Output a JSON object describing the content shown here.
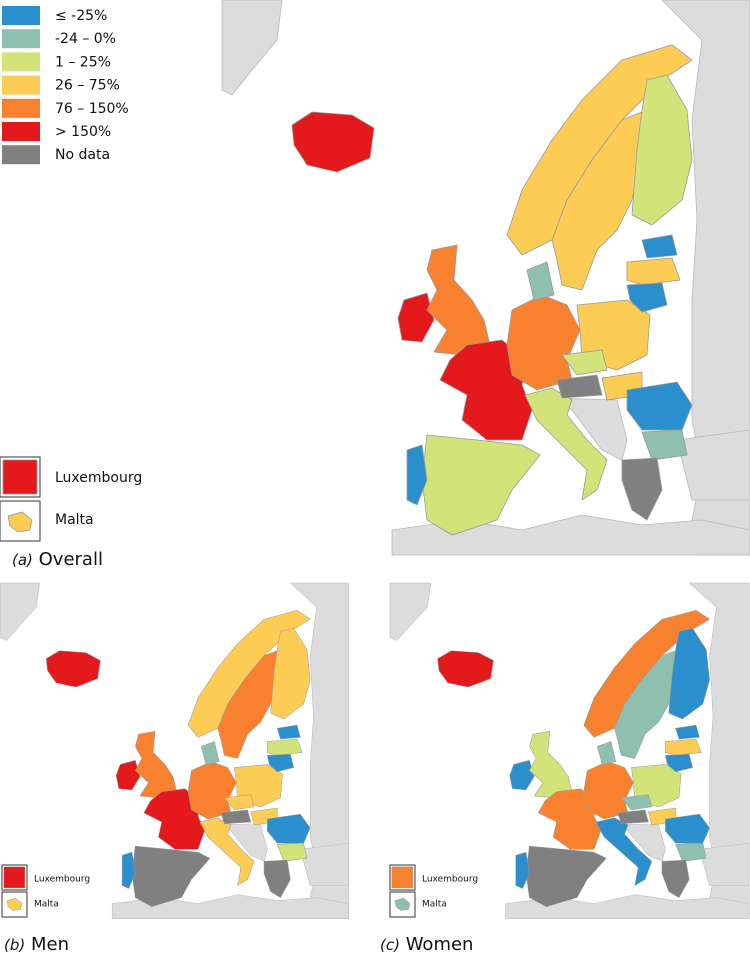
{
  "legend": [
    {
      "label": "≤ -25%",
      "color": "#2a8fcc"
    },
    {
      "label": "-24 – 0%",
      "color": "#8fbfae"
    },
    {
      "label": "1 – 25%",
      "color": "#d2e37a"
    },
    {
      "label": "26 – 75%",
      "color": "#fdcc55"
    },
    {
      "label": "76 – 150%",
      "color": "#f7812e"
    },
    {
      "label": "> 150%",
      "color": "#e3191c"
    },
    {
      "label": "No data",
      "color": "#808080"
    }
  ],
  "panels": [
    {
      "letter": "(a)",
      "caption": "Overall",
      "insets": [
        "Luxembourg",
        "Malta"
      ]
    },
    {
      "letter": "(b)",
      "caption": "Men",
      "insets": [
        "Luxembourg",
        "Malta"
      ]
    },
    {
      "letter": "(c)",
      "caption": "Women",
      "insets": [
        "Luxembourg",
        "Malta"
      ]
    }
  ]
}
